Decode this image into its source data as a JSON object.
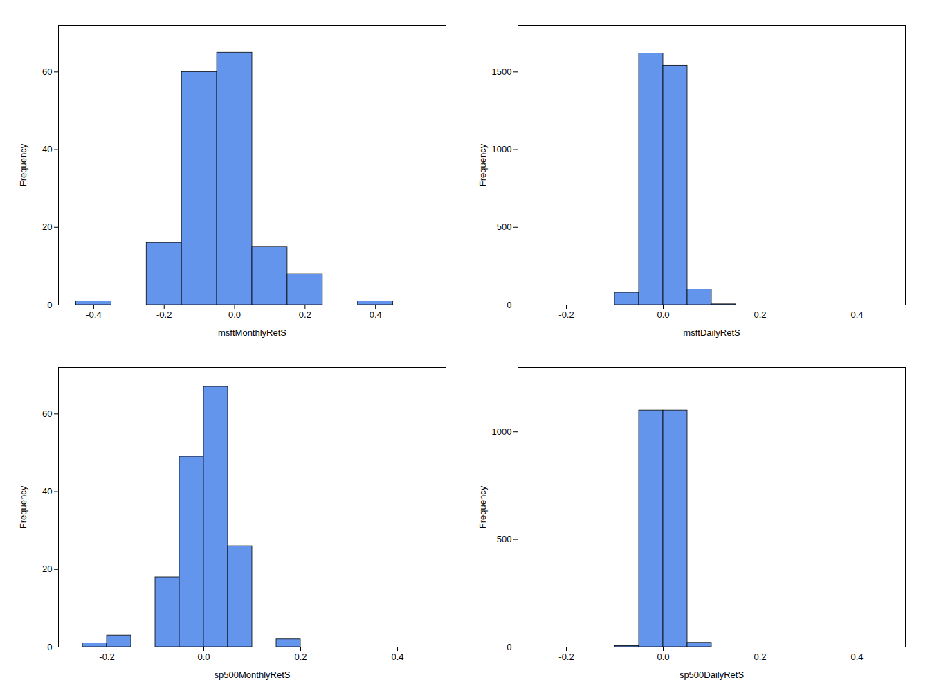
{
  "chart_data": [
    {
      "type": "histogram",
      "xlabel": "msftMonthlyRetS",
      "ylabel": "Frequency",
      "bins": [
        -0.45,
        -0.35,
        -0.25,
        -0.15,
        -0.05,
        0.05,
        0.15,
        0.25,
        0.35,
        0.45,
        0.55
      ],
      "values": [
        1,
        0,
        16,
        60,
        65,
        15,
        8,
        0,
        1,
        0
      ],
      "color": "#6495ED",
      "xlim": [
        -0.5,
        0.6
      ],
      "xticks": [
        -0.4,
        -0.2,
        {
          "value": 0.0,
          "label": "0.0"
        },
        0.2,
        0.4
      ],
      "ylim": [
        0,
        72
      ],
      "yticks": [
        0,
        20,
        40,
        60
      ]
    },
    {
      "type": "histogram",
      "xlabel": "msftDailyRetS",
      "ylabel": "Frequency",
      "bins": [
        -0.15,
        -0.1,
        -0.05,
        0.0,
        0.05,
        0.1,
        0.15,
        0.2
      ],
      "values": [
        0,
        80,
        1620,
        1540,
        100,
        5,
        0
      ],
      "color": "#6495ED",
      "xlim": [
        -0.3,
        0.5
      ],
      "xticks": [
        -0.2,
        {
          "value": 0.0,
          "label": "0.0"
        },
        0.2,
        0.4
      ],
      "ylim": [
        0,
        1800
      ],
      "yticks": [
        0,
        500,
        1000,
        1500
      ]
    },
    {
      "type": "histogram",
      "xlabel": "sp500MonthlyRetS",
      "ylabel": "Frequency",
      "bins": [
        -0.25,
        -0.2,
        -0.15,
        -0.1,
        -0.05,
        0.0,
        0.05,
        0.1,
        0.15,
        0.2,
        0.25
      ],
      "values": [
        1,
        3,
        0,
        18,
        49,
        67,
        26,
        0,
        2,
        0
      ],
      "color": "#6495ED",
      "xlim": [
        -0.3,
        0.5
      ],
      "xticks": [
        -0.2,
        {
          "value": 0.0,
          "label": "0.0"
        },
        0.2,
        0.4
      ],
      "ylim": [
        0,
        72
      ],
      "yticks": [
        0,
        20,
        40,
        60
      ]
    },
    {
      "type": "histogram",
      "xlabel": "sp500DailyRetS",
      "ylabel": "Frequency",
      "bins": [
        -0.1,
        -0.05,
        0.0,
        0.05,
        0.1
      ],
      "values": [
        5,
        1100,
        1100,
        20
      ],
      "color": "#6495ED",
      "xlim": [
        -0.3,
        0.5
      ],
      "xticks": [
        -0.2,
        {
          "value": 0.0,
          "label": "0.0"
        },
        0.2,
        0.4
      ],
      "ylim": [
        0,
        1300
      ],
      "yticks": [
        0,
        500,
        1000
      ]
    }
  ]
}
